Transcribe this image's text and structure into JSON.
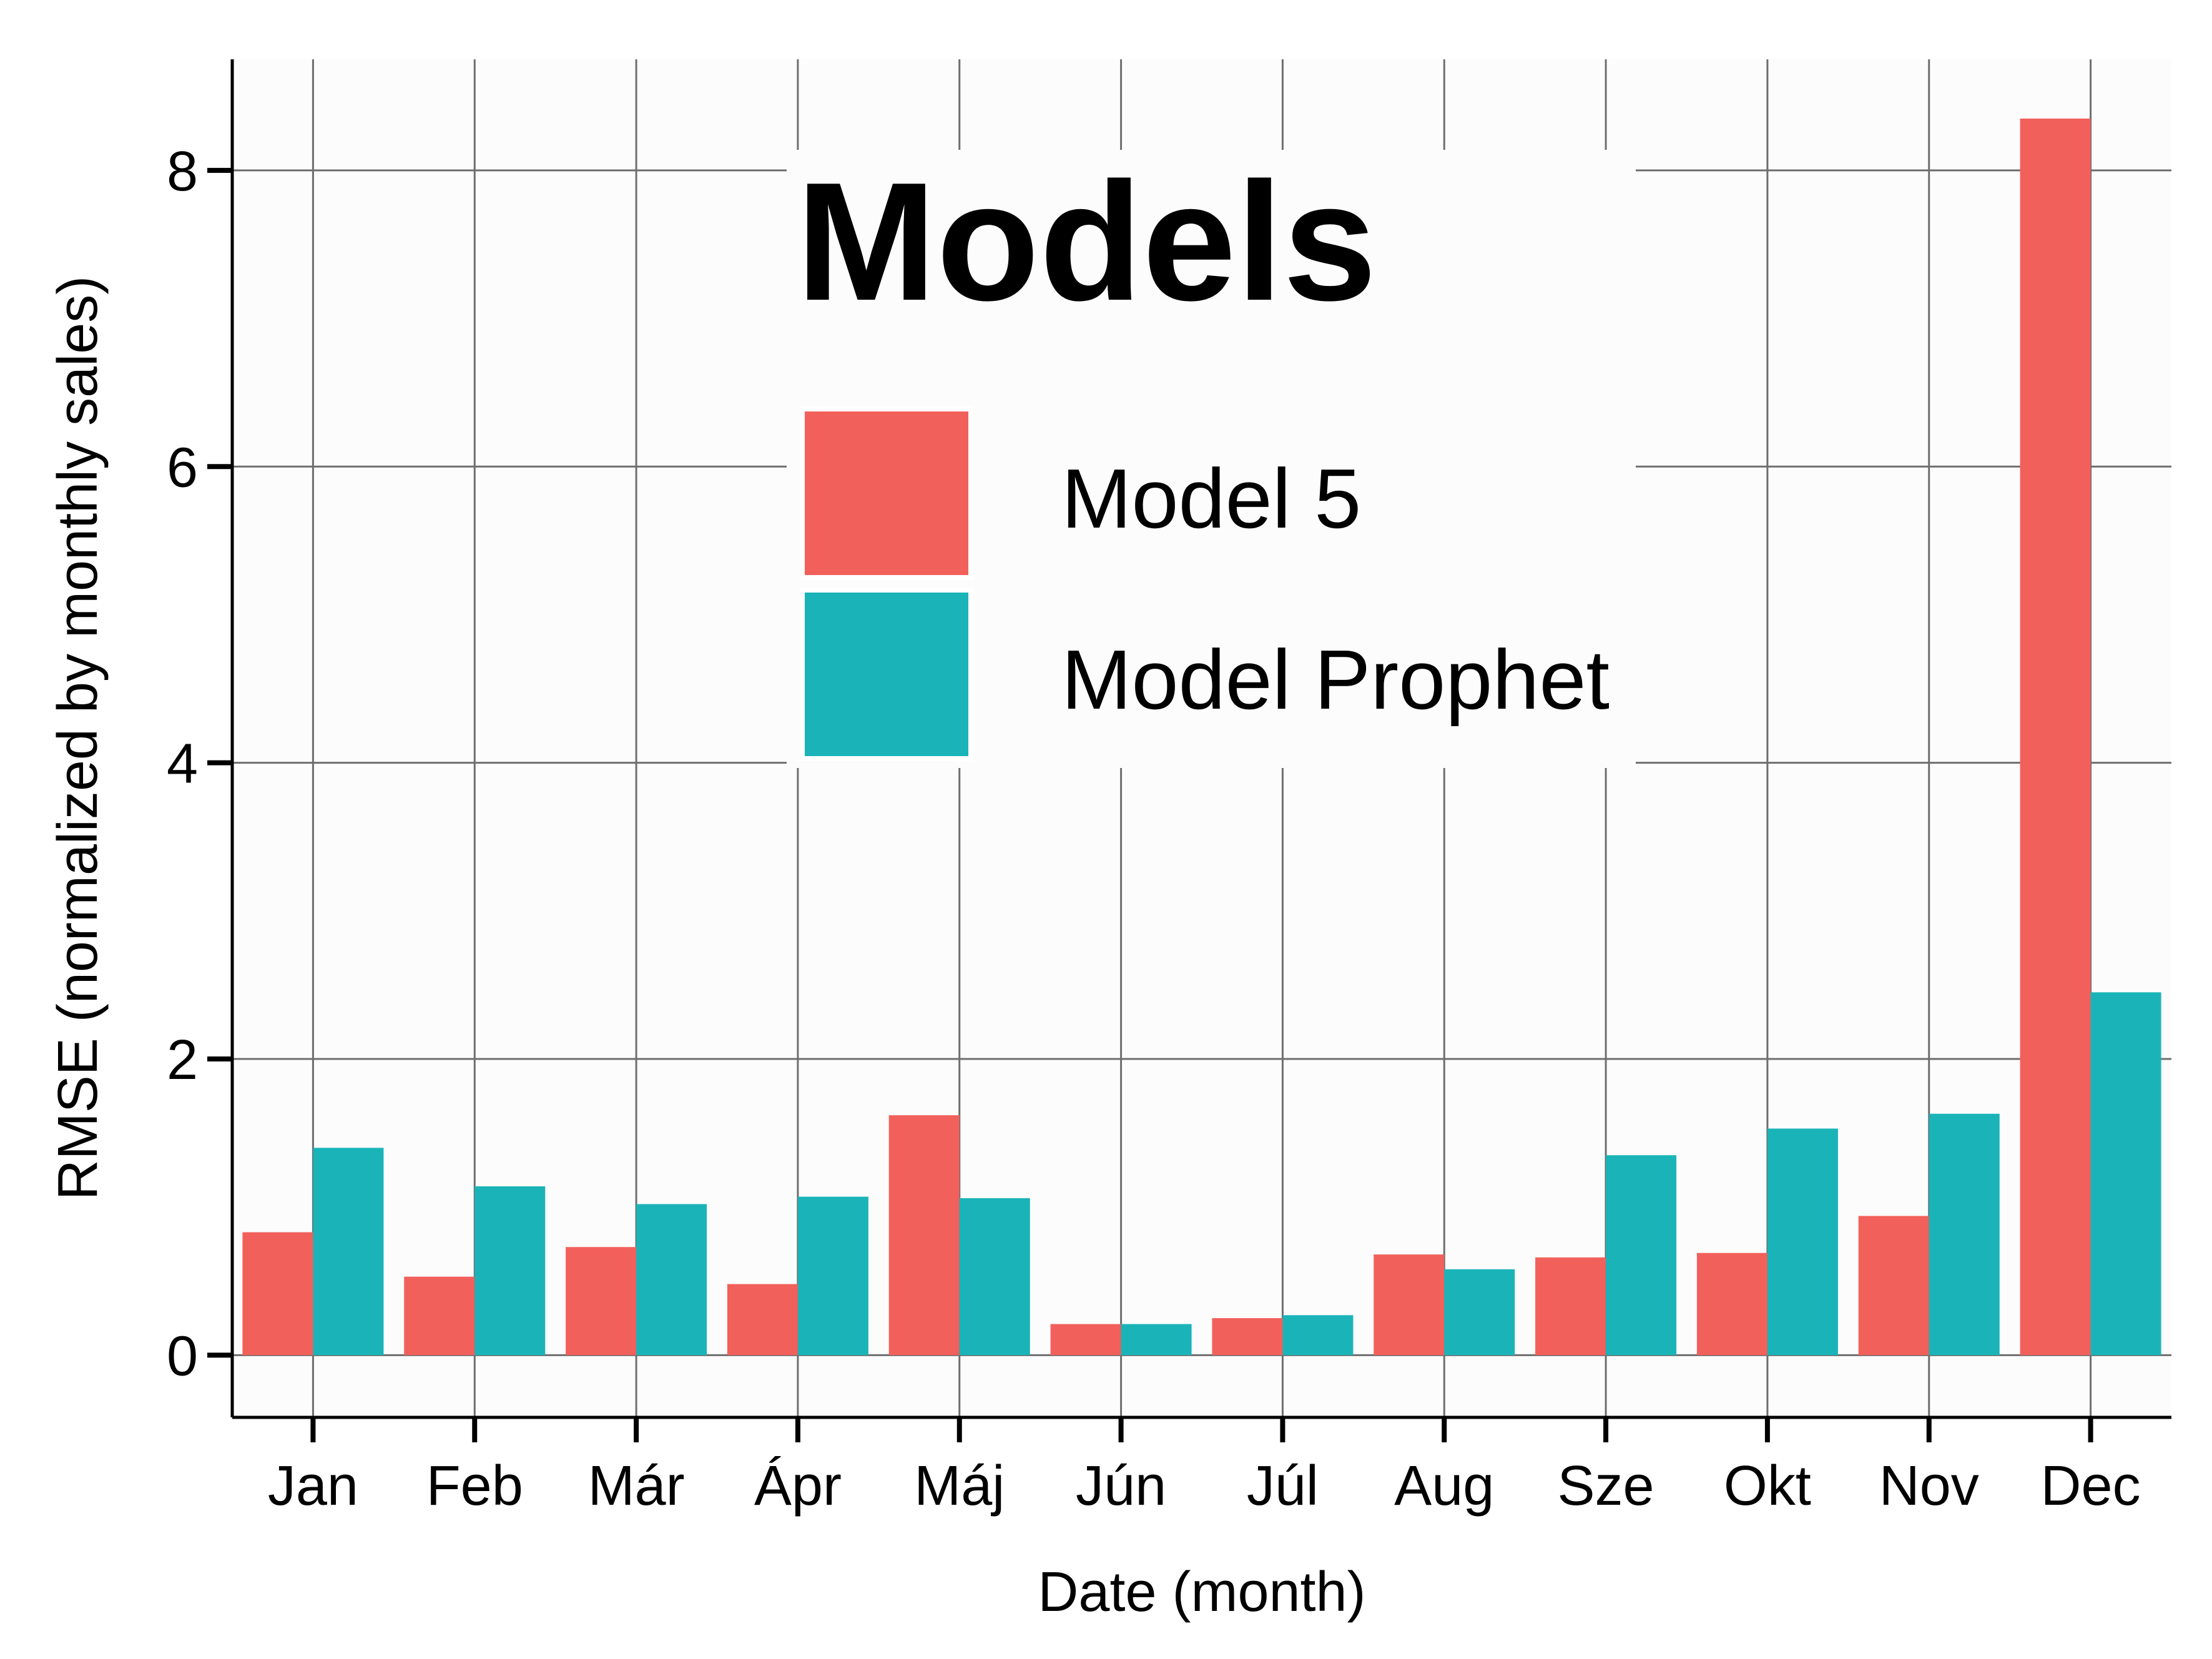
{
  "chart_data": {
    "type": "bar",
    "xlabel": "Date (month)",
    "ylabel": "RMSE (normalized by monthly sales)",
    "categories": [
      "Jan",
      "Feb",
      "Már",
      "Ápr",
      "Máj",
      "Jún",
      "Júl",
      "Aug",
      "Sze",
      "Okt",
      "Nov",
      "Dec"
    ],
    "series": [
      {
        "name": "Model 5",
        "color": "#F2605B",
        "values": [
          0.83,
          0.53,
          0.73,
          0.48,
          1.62,
          0.21,
          0.25,
          0.68,
          0.66,
          0.69,
          0.94,
          8.35
        ]
      },
      {
        "name": "Model Prophet",
        "color": "#1AB4B8",
        "values": [
          1.4,
          1.14,
          1.02,
          1.07,
          1.06,
          0.21,
          0.27,
          0.58,
          1.35,
          1.53,
          1.63,
          2.45
        ]
      }
    ],
    "yticks": [
      0,
      2,
      4,
      6,
      8
    ],
    "ylim": [
      -0.42,
      8.75
    ],
    "grid": true,
    "legend": {
      "title": "Models",
      "placement": "top-center"
    }
  }
}
